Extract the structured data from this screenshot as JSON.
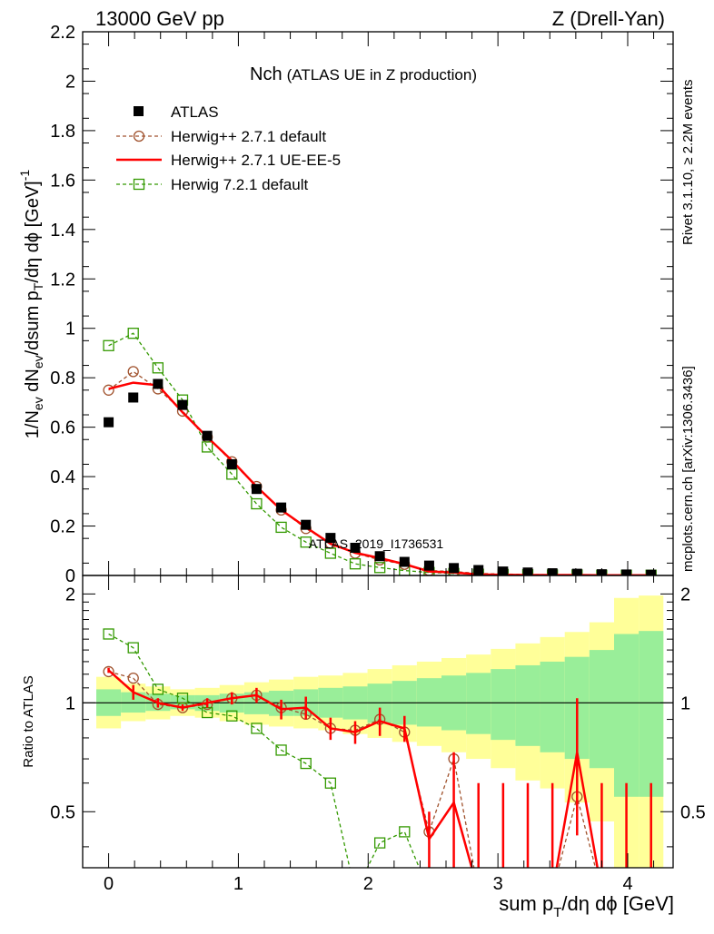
{
  "header": {
    "left": "13000 GeV pp",
    "right": "Z (Drell-Yan)"
  },
  "side_labels": {
    "rivet": "Rivet 3.1.10, ≥ 2.2M events",
    "mcplots": "mcplots.cern.ch [arXiv:1306.3436]"
  },
  "watermark": "ATLAS_2019_I1736531",
  "chart_data": [
    {
      "type": "line",
      "title_main": "Nch",
      "title_sub": "(ATLAS UE in Z production)",
      "ylabel_parts": [
        "1/N",
        "ev",
        " dN",
        "ev",
        "/dsum p",
        "T",
        "/dη dϕ  [GeV]",
        "-1"
      ],
      "xlim": [
        -0.2,
        4.35
      ],
      "ylim": [
        0,
        2.2
      ],
      "x_ticks": [
        0,
        1,
        2,
        3,
        4
      ],
      "y_ticks": [
        0,
        0.2,
        0.4,
        0.6,
        0.8,
        1,
        1.2,
        1.4,
        1.6,
        1.8,
        2,
        2.2
      ],
      "y_tick_labels": [
        "0",
        "0.2",
        "0.4",
        "0.6",
        "0.8",
        "1",
        "1.2",
        "1.4",
        "1.6",
        "1.8",
        "2",
        "2.2"
      ],
      "legend_position": "top-left",
      "x": [
        0.0,
        0.19,
        0.38,
        0.57,
        0.76,
        0.95,
        1.14,
        1.33,
        1.52,
        1.71,
        1.9,
        2.09,
        2.28,
        2.47,
        2.66,
        2.85,
        3.04,
        3.23,
        3.42,
        3.61,
        3.8,
        3.99,
        4.18
      ],
      "series": [
        {
          "name": "ATLAS",
          "style": "data",
          "color": "#000000",
          "values": [
            0.62,
            0.72,
            0.775,
            0.69,
            0.565,
            0.45,
            0.35,
            0.275,
            0.205,
            0.152,
            0.112,
            0.078,
            0.055,
            0.04,
            0.03,
            0.022,
            0.016,
            0.012,
            0.009,
            0.007,
            0.005,
            0.004,
            0.003
          ]
        },
        {
          "name": "Herwig++ 2.7.1 default",
          "style": "circle-dashed",
          "color": "#a0522d",
          "values": [
            0.75,
            0.825,
            0.755,
            0.665,
            0.56,
            0.46,
            0.36,
            0.265,
            0.19,
            0.13,
            0.09,
            0.063,
            0.045,
            0.02,
            0.016,
            0.008,
            0.006,
            0.004,
            0.003,
            0.002,
            0.002,
            0.001,
            0.001
          ]
        },
        {
          "name": "Herwig++ 2.7.1 UE-EE-5",
          "style": "solid",
          "color": "#ff0000",
          "values": [
            0.755,
            0.78,
            0.77,
            0.66,
            0.56,
            0.465,
            0.36,
            0.265,
            0.195,
            0.128,
            0.092,
            0.07,
            0.046,
            0.016,
            0.012,
            0.004,
            0.003,
            0.002,
            0.002,
            0.002,
            0.001,
            0.001,
            0.001
          ]
        },
        {
          "name": "Herwig 7.2.1 default",
          "style": "square-dashed",
          "color": "#339900",
          "values": [
            0.93,
            0.98,
            0.84,
            0.71,
            0.52,
            0.41,
            0.29,
            0.195,
            0.135,
            0.09,
            0.047,
            0.032,
            0.02,
            0.012,
            0.008,
            0.005,
            0.004,
            0.003,
            0.002,
            0.002,
            0.001,
            0.001,
            0.001
          ]
        }
      ]
    },
    {
      "type": "line",
      "ylabel": "Ratio to ATLAS",
      "xlabel_parts": [
        "sum p",
        "T",
        "/dη dϕ [GeV]"
      ],
      "xlim": [
        -0.2,
        4.35
      ],
      "ylim": [
        0.35,
        2.25
      ],
      "x_ticks": [
        0,
        1,
        2,
        3,
        4
      ],
      "x_tick_labels": [
        "0",
        "1",
        "2",
        "3",
        "4"
      ],
      "y_ticks": [
        0.5,
        1,
        2
      ],
      "y_tick_labels": [
        "0.5",
        "1",
        "2"
      ],
      "x_edges": [
        -0.095,
        0.095,
        0.285,
        0.475,
        0.665,
        0.855,
        1.045,
        1.235,
        1.425,
        1.615,
        1.805,
        1.995,
        2.185,
        2.375,
        2.565,
        2.755,
        2.945,
        3.135,
        3.325,
        3.515,
        3.705,
        3.895,
        4.085,
        4.275
      ],
      "band_yellow_lo": [
        0.85,
        0.89,
        0.9,
        0.92,
        0.91,
        0.89,
        0.87,
        0.86,
        0.85,
        0.84,
        0.82,
        0.8,
        0.78,
        0.76,
        0.73,
        0.7,
        0.66,
        0.61,
        0.58,
        0.53,
        0.47,
        0.35,
        0.35
      ],
      "band_yellow_hi": [
        1.18,
        1.13,
        1.11,
        1.09,
        1.1,
        1.12,
        1.14,
        1.16,
        1.18,
        1.19,
        1.21,
        1.24,
        1.27,
        1.3,
        1.33,
        1.36,
        1.41,
        1.46,
        1.52,
        1.57,
        1.67,
        1.95,
        1.98
      ],
      "band_green_lo": [
        0.92,
        0.94,
        0.95,
        0.96,
        0.95,
        0.94,
        0.93,
        0.92,
        0.92,
        0.91,
        0.9,
        0.88,
        0.87,
        0.86,
        0.84,
        0.82,
        0.79,
        0.76,
        0.73,
        0.7,
        0.66,
        0.55,
        0.55
      ],
      "band_green_hi": [
        1.09,
        1.07,
        1.06,
        1.05,
        1.05,
        1.06,
        1.07,
        1.08,
        1.09,
        1.1,
        1.11,
        1.13,
        1.15,
        1.17,
        1.19,
        1.21,
        1.24,
        1.27,
        1.3,
        1.34,
        1.4,
        1.55,
        1.58
      ],
      "series": [
        {
          "name": "Herwig++ 2.7.1 default",
          "style": "circle-dashed",
          "color": "#a0522d",
          "values": [
            1.22,
            1.17,
            0.99,
            0.97,
            0.99,
            1.03,
            1.05,
            0.97,
            0.93,
            0.85,
            0.84,
            0.9,
            0.83,
            0.44,
            0.7,
            0.3,
            0.3,
            0.3,
            0.3,
            0.55,
            0.3,
            0.3,
            0.3
          ]
        },
        {
          "name": "Herwig++ 2.7.1 UE-EE-5",
          "style": "solid",
          "color": "#ff0000",
          "values": [
            1.23,
            1.07,
            1.0,
            0.97,
            1.0,
            1.03,
            1.05,
            0.96,
            0.97,
            0.85,
            0.83,
            0.89,
            0.85,
            0.42,
            0.53,
            0.3,
            0.3,
            0.3,
            0.3,
            0.73,
            0.3,
            0.3,
            0.3
          ],
          "err_low": [
            0.02,
            0.05,
            0.03,
            0.02,
            0.03,
            0.04,
            0.05,
            0.06,
            0.07,
            0.06,
            0.06,
            0.08,
            0.07,
            0.08,
            0.2,
            0.3,
            0.3,
            0.3,
            0.3,
            0.3,
            0.3,
            0.3,
            0.3
          ],
          "err_high": [
            0.02,
            0.05,
            0.03,
            0.02,
            0.03,
            0.04,
            0.05,
            0.06,
            0.07,
            0.06,
            0.06,
            0.08,
            0.07,
            0.08,
            0.2,
            0.3,
            0.3,
            0.3,
            0.3,
            0.3,
            0.3,
            0.3,
            0.3
          ]
        },
        {
          "name": "Herwig 7.2.1 default",
          "style": "square-dashed",
          "color": "#339900",
          "values": [
            1.55,
            1.42,
            1.09,
            1.03,
            0.94,
            0.92,
            0.85,
            0.74,
            0.68,
            0.6,
            0.3,
            0.41,
            0.44,
            0.3,
            0.3,
            0.3,
            0.3,
            0.3,
            0.3,
            0.3,
            0.3,
            0.3,
            0.3
          ]
        }
      ]
    }
  ]
}
